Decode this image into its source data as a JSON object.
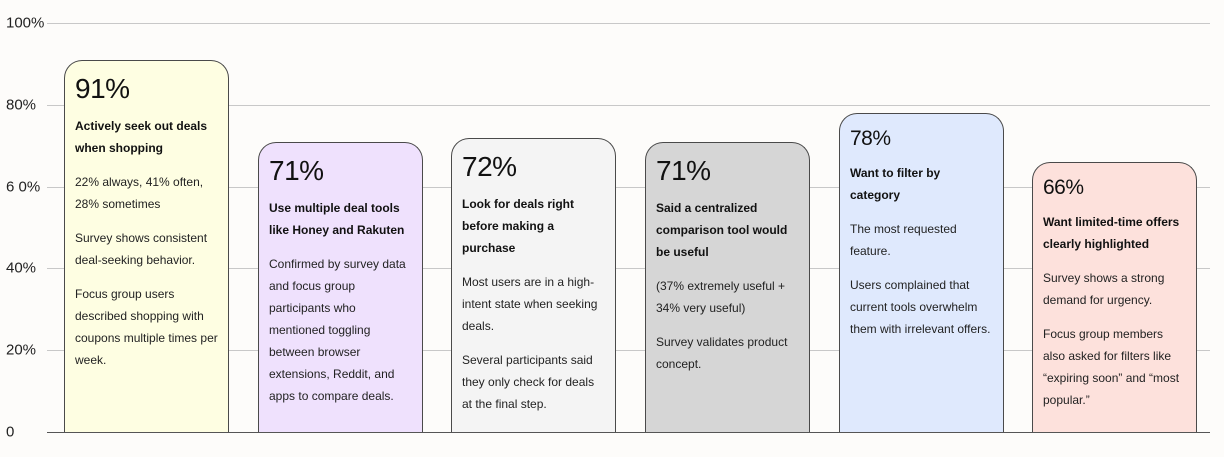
{
  "chart_data": {
    "type": "bar",
    "ylim": [
      0,
      100
    ],
    "y_ticks": [
      "0",
      "20%",
      "40%",
      "6 0%",
      "80%",
      "100%"
    ],
    "y_tick_values": [
      0,
      20,
      40,
      60,
      80,
      100
    ],
    "grid": true,
    "values": [
      91,
      71,
      72,
      71,
      78,
      66
    ],
    "cards": [
      {
        "value": 91,
        "label": "91%",
        "headline": "Actively seek out deals when shopping",
        "paragraphs": [
          "22% always, 41% often, 28% sometimes",
          "Survey shows consistent deal-seeking behavior.",
          "Focus group users described shopping with coupons multiple times per week."
        ],
        "color": "#fefee2"
      },
      {
        "value": 71,
        "label": "71%",
        "headline": "Use multiple deal tools like Honey and Rakuten",
        "paragraphs": [
          "Confirmed by survey data and focus group participants who mentioned toggling between browser extensions, Reddit, and apps to compare deals."
        ],
        "color": "#efe1fd"
      },
      {
        "value": 72,
        "label": "72%",
        "headline": "Look for deals right before making a purchase",
        "paragraphs": [
          "Most users are in a high-intent state when seeking deals.",
          "Several participants said they only check for deals at the final step."
        ],
        "color": "#f4f4f4"
      },
      {
        "value": 71,
        "label": "71%",
        "headline": "Said a centralized comparison tool would be useful",
        "paragraphs": [
          "(37% extremely useful + 34% very useful)",
          "Survey validates product concept."
        ],
        "color": "#d6d6d6"
      },
      {
        "value": 78,
        "label": "78%",
        "headline": "Want to filter by category",
        "paragraphs": [
          "The most requested feature.",
          "Users complained that current tools overwhelm them with irrelevant offers."
        ],
        "color": "#dfe9fd"
      },
      {
        "value": 66,
        "label": "66%",
        "headline": "Want limited-time offers clearly highlighted",
        "paragraphs": [
          "Survey shows a strong demand for urgency.",
          "Focus group members also asked for filters like “expiring soon” and “most popular.”"
        ],
        "color": "#fde1dc"
      }
    ]
  }
}
